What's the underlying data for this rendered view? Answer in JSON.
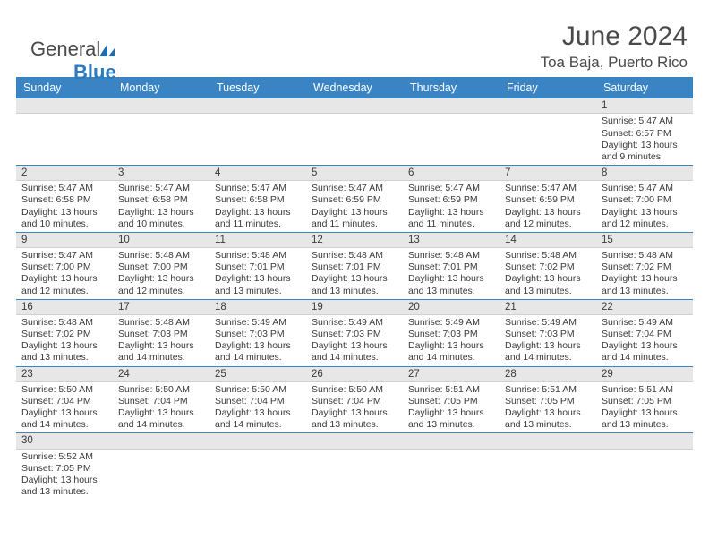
{
  "brand": {
    "part1": "General",
    "part2": "Blue"
  },
  "header": {
    "month_title": "June 2024",
    "location": "Toa Baja, Puerto Rico"
  },
  "colors": {
    "header_bg": "#3b84c4",
    "header_text": "#ffffff",
    "daynum_bg": "#e7e7e7",
    "week_sep": "#3b84c4",
    "text": "#3a3a3a",
    "brand_grey": "#4a4a4a",
    "brand_blue": "#2b7bbf",
    "page_bg": "#ffffff"
  },
  "day_names": [
    "Sunday",
    "Monday",
    "Tuesday",
    "Wednesday",
    "Thursday",
    "Friday",
    "Saturday"
  ],
  "labels": {
    "sunrise": "Sunrise:",
    "sunset": "Sunset:",
    "daylight": "Daylight:"
  },
  "weeks": [
    [
      null,
      null,
      null,
      null,
      null,
      null,
      {
        "n": "1",
        "sunrise": "5:47 AM",
        "sunset": "6:57 PM",
        "daylight": "13 hours and 9 minutes."
      }
    ],
    [
      {
        "n": "2",
        "sunrise": "5:47 AM",
        "sunset": "6:58 PM",
        "daylight": "13 hours and 10 minutes."
      },
      {
        "n": "3",
        "sunrise": "5:47 AM",
        "sunset": "6:58 PM",
        "daylight": "13 hours and 10 minutes."
      },
      {
        "n": "4",
        "sunrise": "5:47 AM",
        "sunset": "6:58 PM",
        "daylight": "13 hours and 11 minutes."
      },
      {
        "n": "5",
        "sunrise": "5:47 AM",
        "sunset": "6:59 PM",
        "daylight": "13 hours and 11 minutes."
      },
      {
        "n": "6",
        "sunrise": "5:47 AM",
        "sunset": "6:59 PM",
        "daylight": "13 hours and 11 minutes."
      },
      {
        "n": "7",
        "sunrise": "5:47 AM",
        "sunset": "6:59 PM",
        "daylight": "13 hours and 12 minutes."
      },
      {
        "n": "8",
        "sunrise": "5:47 AM",
        "sunset": "7:00 PM",
        "daylight": "13 hours and 12 minutes."
      }
    ],
    [
      {
        "n": "9",
        "sunrise": "5:47 AM",
        "sunset": "7:00 PM",
        "daylight": "13 hours and 12 minutes."
      },
      {
        "n": "10",
        "sunrise": "5:48 AM",
        "sunset": "7:00 PM",
        "daylight": "13 hours and 12 minutes."
      },
      {
        "n": "11",
        "sunrise": "5:48 AM",
        "sunset": "7:01 PM",
        "daylight": "13 hours and 13 minutes."
      },
      {
        "n": "12",
        "sunrise": "5:48 AM",
        "sunset": "7:01 PM",
        "daylight": "13 hours and 13 minutes."
      },
      {
        "n": "13",
        "sunrise": "5:48 AM",
        "sunset": "7:01 PM",
        "daylight": "13 hours and 13 minutes."
      },
      {
        "n": "14",
        "sunrise": "5:48 AM",
        "sunset": "7:02 PM",
        "daylight": "13 hours and 13 minutes."
      },
      {
        "n": "15",
        "sunrise": "5:48 AM",
        "sunset": "7:02 PM",
        "daylight": "13 hours and 13 minutes."
      }
    ],
    [
      {
        "n": "16",
        "sunrise": "5:48 AM",
        "sunset": "7:02 PM",
        "daylight": "13 hours and 13 minutes."
      },
      {
        "n": "17",
        "sunrise": "5:48 AM",
        "sunset": "7:03 PM",
        "daylight": "13 hours and 14 minutes."
      },
      {
        "n": "18",
        "sunrise": "5:49 AM",
        "sunset": "7:03 PM",
        "daylight": "13 hours and 14 minutes."
      },
      {
        "n": "19",
        "sunrise": "5:49 AM",
        "sunset": "7:03 PM",
        "daylight": "13 hours and 14 minutes."
      },
      {
        "n": "20",
        "sunrise": "5:49 AM",
        "sunset": "7:03 PM",
        "daylight": "13 hours and 14 minutes."
      },
      {
        "n": "21",
        "sunrise": "5:49 AM",
        "sunset": "7:03 PM",
        "daylight": "13 hours and 14 minutes."
      },
      {
        "n": "22",
        "sunrise": "5:49 AM",
        "sunset": "7:04 PM",
        "daylight": "13 hours and 14 minutes."
      }
    ],
    [
      {
        "n": "23",
        "sunrise": "5:50 AM",
        "sunset": "7:04 PM",
        "daylight": "13 hours and 14 minutes."
      },
      {
        "n": "24",
        "sunrise": "5:50 AM",
        "sunset": "7:04 PM",
        "daylight": "13 hours and 14 minutes."
      },
      {
        "n": "25",
        "sunrise": "5:50 AM",
        "sunset": "7:04 PM",
        "daylight": "13 hours and 14 minutes."
      },
      {
        "n": "26",
        "sunrise": "5:50 AM",
        "sunset": "7:04 PM",
        "daylight": "13 hours and 13 minutes."
      },
      {
        "n": "27",
        "sunrise": "5:51 AM",
        "sunset": "7:05 PM",
        "daylight": "13 hours and 13 minutes."
      },
      {
        "n": "28",
        "sunrise": "5:51 AM",
        "sunset": "7:05 PM",
        "daylight": "13 hours and 13 minutes."
      },
      {
        "n": "29",
        "sunrise": "5:51 AM",
        "sunset": "7:05 PM",
        "daylight": "13 hours and 13 minutes."
      }
    ],
    [
      {
        "n": "30",
        "sunrise": "5:52 AM",
        "sunset": "7:05 PM",
        "daylight": "13 hours and 13 minutes."
      },
      null,
      null,
      null,
      null,
      null,
      null
    ]
  ]
}
